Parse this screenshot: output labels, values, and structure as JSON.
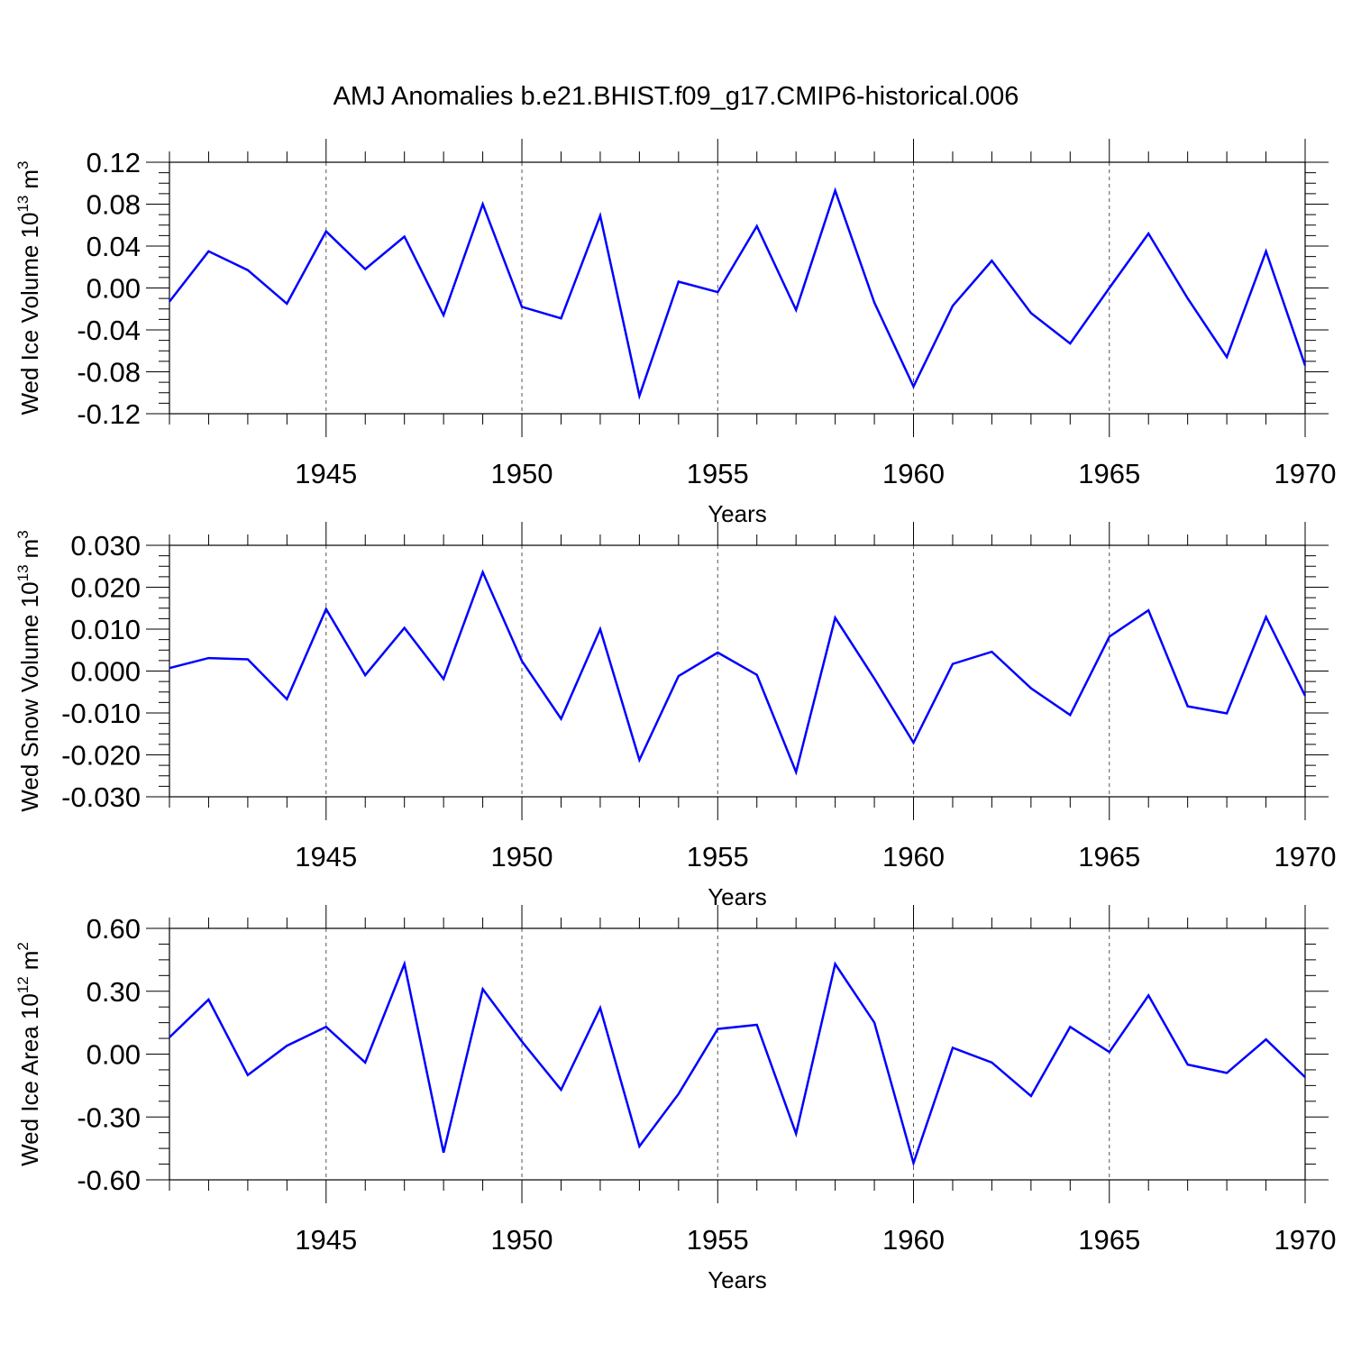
{
  "figure_title": "AMJ Anomalies b.e21.BHIST.f09_g17.CMIP6-historical.006",
  "line_color": "#0000ff",
  "chart_data": [
    {
      "type": "line",
      "ylabel_main": "Wed Ice Volume 10",
      "ylabel_exp": "13",
      "ylabel_unit": "m",
      "ylabel_unit_exp": "3",
      "xlabel": "Years",
      "xlim": [
        1941,
        1970
      ],
      "ylim": [
        -0.12,
        0.12
      ],
      "yticks": [
        -0.12,
        -0.08,
        -0.04,
        0.0,
        0.04,
        0.08,
        0.12
      ],
      "ytick_labels": [
        "-0.12",
        "-0.08",
        "-0.04",
        "0.00",
        "0.04",
        "0.08",
        "0.12"
      ],
      "xticks": [
        1945,
        1950,
        1955,
        1960,
        1965,
        1970
      ],
      "xtick_labels": [
        "1945",
        "1950",
        "1955",
        "1960",
        "1965",
        "1970"
      ],
      "grid": "dashed vertical at labeled years",
      "x": [
        1941,
        1942,
        1943,
        1944,
        1945,
        1946,
        1947,
        1948,
        1949,
        1950,
        1951,
        1952,
        1953,
        1954,
        1955,
        1956,
        1957,
        1958,
        1959,
        1960,
        1961,
        1962,
        1963,
        1964,
        1965,
        1966,
        1967,
        1968,
        1969,
        1970
      ],
      "values": [
        -0.013,
        0.035,
        0.017,
        -0.015,
        0.054,
        0.018,
        0.049,
        -0.026,
        0.08,
        -0.018,
        -0.029,
        0.069,
        -0.103,
        0.006,
        -0.004,
        0.059,
        -0.021,
        0.093,
        -0.014,
        -0.094,
        -0.017,
        0.026,
        -0.024,
        -0.053,
        0.0,
        0.052,
        -0.01,
        -0.066,
        0.035,
        -0.074
      ]
    },
    {
      "type": "line",
      "ylabel_main": "Wed Snow Volume 10",
      "ylabel_exp": "13",
      "ylabel_unit": "m",
      "ylabel_unit_exp": "3",
      "xlabel": "Years",
      "xlim": [
        1941,
        1970
      ],
      "ylim": [
        -0.03,
        0.03
      ],
      "yticks": [
        -0.03,
        -0.02,
        -0.01,
        0.0,
        0.01,
        0.02,
        0.03
      ],
      "ytick_labels": [
        "-0.030",
        "-0.020",
        "-0.010",
        "0.000",
        "0.010",
        "0.020",
        "0.030"
      ],
      "xticks": [
        1945,
        1950,
        1955,
        1960,
        1965,
        1970
      ],
      "xtick_labels": [
        "1945",
        "1950",
        "1955",
        "1960",
        "1965",
        "1970"
      ],
      "grid": "dashed vertical at labeled years",
      "x": [
        1941,
        1942,
        1943,
        1944,
        1945,
        1946,
        1947,
        1948,
        1949,
        1950,
        1951,
        1952,
        1953,
        1954,
        1955,
        1956,
        1957,
        1958,
        1959,
        1960,
        1961,
        1962,
        1963,
        1964,
        1965,
        1966,
        1967,
        1968,
        1969,
        1970
      ],
      "values": [
        0.0007,
        0.0031,
        0.0028,
        -0.0067,
        0.0148,
        -0.001,
        0.0103,
        -0.0019,
        0.0236,
        0.0024,
        -0.0114,
        0.01,
        -0.0212,
        -0.0012,
        0.0044,
        -0.0009,
        -0.0241,
        0.0127,
        -0.0018,
        -0.0171,
        0.0017,
        0.0046,
        -0.0041,
        -0.0105,
        0.0082,
        0.0145,
        -0.0084,
        -0.0101,
        0.0129,
        -0.0059
      ]
    },
    {
      "type": "line",
      "ylabel_main": "Wed Ice Area 10",
      "ylabel_exp": "12",
      "ylabel_unit": "m",
      "ylabel_unit_exp": "2",
      "xlabel": "Years",
      "xlim": [
        1941,
        1970
      ],
      "ylim": [
        -0.6,
        0.6
      ],
      "yticks": [
        -0.6,
        -0.3,
        0.0,
        0.3,
        0.6
      ],
      "ytick_labels": [
        "-0.60",
        "-0.30",
        "0.00",
        "0.30",
        "0.60"
      ],
      "xticks": [
        1945,
        1950,
        1955,
        1960,
        1965,
        1970
      ],
      "xtick_labels": [
        "1945",
        "1950",
        "1955",
        "1960",
        "1965",
        "1970"
      ],
      "grid": "dashed vertical at labeled years",
      "x": [
        1941,
        1942,
        1943,
        1944,
        1945,
        1946,
        1947,
        1948,
        1949,
        1950,
        1951,
        1952,
        1953,
        1954,
        1955,
        1956,
        1957,
        1958,
        1959,
        1960,
        1961,
        1962,
        1963,
        1964,
        1965,
        1966,
        1967,
        1968,
        1969,
        1970
      ],
      "values": [
        0.08,
        0.26,
        -0.1,
        0.04,
        0.13,
        -0.04,
        0.43,
        -0.47,
        0.31,
        0.06,
        -0.17,
        0.22,
        -0.44,
        -0.19,
        0.12,
        0.14,
        -0.38,
        0.43,
        0.15,
        -0.52,
        0.03,
        -0.04,
        -0.2,
        0.13,
        0.01,
        0.28,
        -0.05,
        -0.09,
        0.07,
        -0.11
      ]
    }
  ]
}
